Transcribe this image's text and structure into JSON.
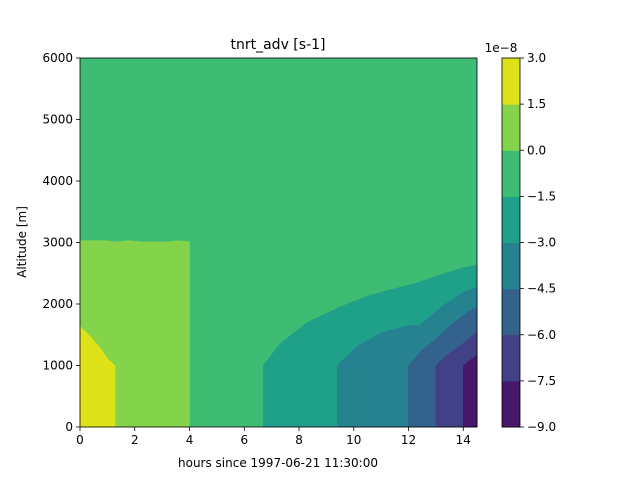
{
  "chart_data": {
    "type": "contourf",
    "title": "tnrt_adv [s-1]",
    "xlabel": "hours since 1997-06-21 11:30:00",
    "ylabel": "Altitude [m]",
    "xlim": [
      0,
      14.5
    ],
    "ylim": [
      0,
      6000
    ],
    "x_ticks": [
      0,
      2,
      4,
      6,
      8,
      10,
      12,
      14
    ],
    "y_ticks": [
      0,
      1000,
      2000,
      3000,
      4000,
      5000,
      6000
    ],
    "colorbar": {
      "exponent_label": "1e−8",
      "levels": [
        -9.0,
        -7.5,
        -6.0,
        -4.5,
        -3.0,
        -1.5,
        0.0,
        1.5,
        3.0
      ],
      "tick_labels": [
        "−9.0",
        "−7.5",
        "−6.0",
        "−4.5",
        "−3.0",
        "−1.5",
        "0.0",
        "1.5",
        "3.0"
      ],
      "colors": [
        "#48186a",
        "#424086",
        "#33638d",
        "#26828e",
        "#1fa088",
        "#3fbc73",
        "#84d44b",
        "#dde318"
      ]
    },
    "regions": [
      {
        "level": "1.5 to 3.0",
        "color": "#dde318",
        "points": [
          [
            0,
            0
          ],
          [
            0,
            1650
          ],
          [
            0.3,
            1520
          ],
          [
            0.7,
            1320
          ],
          [
            1.0,
            1130
          ],
          [
            1.3,
            1000
          ],
          [
            1.3,
            0
          ]
        ]
      },
      {
        "level": "0.0 to 1.5",
        "color": "#84d44b",
        "points": [
          [
            0,
            1650
          ],
          [
            0,
            3030
          ],
          [
            1.0,
            3030
          ],
          [
            1.3,
            3010
          ],
          [
            1.8,
            3030
          ],
          [
            2.3,
            3010
          ],
          [
            3.2,
            3010
          ],
          [
            3.6,
            3030
          ],
          [
            4.0,
            3010
          ],
          [
            4.0,
            0
          ],
          [
            1.3,
            0
          ],
          [
            1.3,
            1000
          ],
          [
            1.0,
            1130
          ],
          [
            0.7,
            1320
          ],
          [
            0.3,
            1520
          ]
        ]
      },
      {
        "level": "-3.0 to -1.5",
        "color": "#1fa088",
        "points": [
          [
            6.7,
            0
          ],
          [
            6.7,
            1000
          ],
          [
            7.3,
            1350
          ],
          [
            8.3,
            1700
          ],
          [
            9.5,
            1950
          ],
          [
            10.5,
            2130
          ],
          [
            11.5,
            2250
          ],
          [
            12.3,
            2340
          ],
          [
            13.2,
            2480
          ],
          [
            14.0,
            2590
          ],
          [
            14.5,
            2630
          ],
          [
            14.5,
            0
          ]
        ]
      },
      {
        "level": "-4.5 to -3.0",
        "color": "#26828e",
        "points": [
          [
            9.4,
            0
          ],
          [
            9.4,
            1000
          ],
          [
            10.1,
            1300
          ],
          [
            11.0,
            1530
          ],
          [
            12.0,
            1650
          ],
          [
            12.4,
            1650
          ],
          [
            13.2,
            1950
          ],
          [
            14.0,
            2190
          ],
          [
            14.5,
            2270
          ],
          [
            14.5,
            0
          ]
        ]
      },
      {
        "level": "-6.0 to -4.5",
        "color": "#33638d",
        "points": [
          [
            12.0,
            0
          ],
          [
            12.0,
            1000
          ],
          [
            12.5,
            1250
          ],
          [
            13.0,
            1430
          ],
          [
            13.6,
            1680
          ],
          [
            14.2,
            1880
          ],
          [
            14.5,
            1950
          ],
          [
            14.5,
            0
          ]
        ]
      },
      {
        "level": "-7.5 to -6.0",
        "color": "#424086",
        "points": [
          [
            13.0,
            0
          ],
          [
            13.0,
            1000
          ],
          [
            13.5,
            1200
          ],
          [
            14.0,
            1360
          ],
          [
            14.5,
            1540
          ],
          [
            14.5,
            0
          ]
        ]
      },
      {
        "level": "-9.0 to -7.5",
        "color": "#48186a",
        "points": [
          [
            14.0,
            0
          ],
          [
            14.0,
            1000
          ],
          [
            14.3,
            1100
          ],
          [
            14.5,
            1170
          ],
          [
            14.5,
            0
          ]
        ]
      }
    ]
  }
}
